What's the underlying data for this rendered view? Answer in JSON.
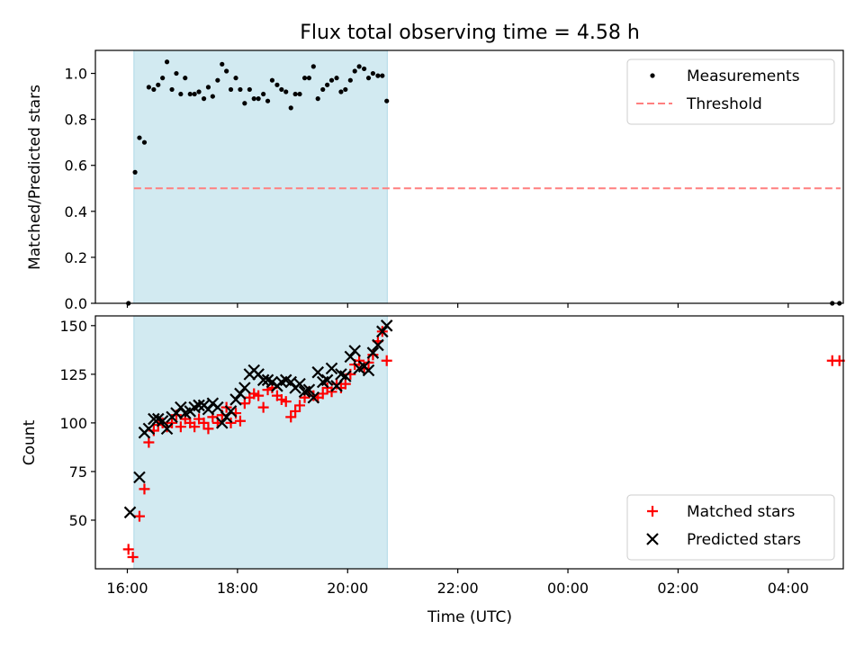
{
  "chart_data": {
    "title": "Flux total observing time = 4.58 h",
    "xlabel": "Time (UTC)",
    "x_unit": "hours since 16:00 UTC",
    "x_ticks": [
      {
        "value": 0,
        "label": "16:00"
      },
      {
        "value": 2,
        "label": "18:00"
      },
      {
        "value": 4,
        "label": "20:00"
      },
      {
        "value": 6,
        "label": "22:00"
      },
      {
        "value": 8,
        "label": "00:00"
      },
      {
        "value": 10,
        "label": "02:00"
      },
      {
        "value": 12,
        "label": "04:00"
      }
    ],
    "xlim": [
      -0.58,
      13.0
    ],
    "shaded_span": [
      0.12,
      4.72
    ],
    "shade_color": "#add8e6",
    "panels": [
      {
        "id": "ratio",
        "type": "scatter",
        "ylabel": "Matched/Predicted stars",
        "ylim": [
          0.0,
          1.1
        ],
        "y_ticks": [
          {
            "value": 0.0,
            "label": "0.0"
          },
          {
            "value": 0.2,
            "label": "0.2"
          },
          {
            "value": 0.4,
            "label": "0.4"
          },
          {
            "value": 0.6,
            "label": "0.6"
          },
          {
            "value": 0.8,
            "label": "0.8"
          },
          {
            "value": 1.0,
            "label": "1.0"
          }
        ],
        "legend": "top-right",
        "threshold": {
          "name": "Threshold",
          "value": 0.5,
          "x_range": [
            0.12,
            12.95
          ],
          "color": "#ff7f7f"
        },
        "series": [
          {
            "name": "Measurements",
            "color": "#000000",
            "marker": "dot",
            "x": [
              0.02,
              0.14,
              0.22,
              0.31,
              0.39,
              0.48,
              0.56,
              0.64,
              0.72,
              0.81,
              0.89,
              0.97,
              1.05,
              1.14,
              1.22,
              1.3,
              1.39,
              1.47,
              1.55,
              1.64,
              1.72,
              1.8,
              1.88,
              1.97,
              2.05,
              2.13,
              2.22,
              2.3,
              2.38,
              2.47,
              2.55,
              2.63,
              2.72,
              2.8,
              2.88,
              2.97,
              3.05,
              3.13,
              3.22,
              3.3,
              3.38,
              3.46,
              3.55,
              3.63,
              3.71,
              3.8,
              3.88,
              3.96,
              4.05,
              4.13,
              4.21,
              4.3,
              4.38,
              4.46,
              4.55,
              4.63,
              4.71,
              12.8,
              12.93
            ],
            "y": [
              0.0,
              0.57,
              0.72,
              0.7,
              0.94,
              0.93,
              0.95,
              0.98,
              1.05,
              0.93,
              1.0,
              0.91,
              0.98,
              0.91,
              0.91,
              0.92,
              0.89,
              0.94,
              0.9,
              0.97,
              1.04,
              1.01,
              0.93,
              0.98,
              0.93,
              0.87,
              0.93,
              0.89,
              0.89,
              0.91,
              0.88,
              0.97,
              0.95,
              0.93,
              0.92,
              0.85,
              0.91,
              0.91,
              0.98,
              0.98,
              1.03,
              0.89,
              0.93,
              0.95,
              0.97,
              0.98,
              0.92,
              0.93,
              0.97,
              1.01,
              1.03,
              1.02,
              0.98,
              1.0,
              0.99,
              0.99,
              0.88,
              0.0,
              0.0
            ]
          }
        ]
      },
      {
        "id": "count",
        "type": "scatter",
        "ylabel": "Count",
        "ylim": [
          25,
          155
        ],
        "y_ticks": [
          {
            "value": 50,
            "label": "50"
          },
          {
            "value": 75,
            "label": "75"
          },
          {
            "value": 100,
            "label": "100"
          },
          {
            "value": 125,
            "label": "125"
          },
          {
            "value": 150,
            "label": "150"
          }
        ],
        "legend": "bottom-right",
        "series": [
          {
            "name": "Matched stars",
            "color": "#ff0000",
            "marker": "plus",
            "x": [
              0.02,
              0.1,
              0.22,
              0.31,
              0.39,
              0.48,
              0.56,
              0.64,
              0.72,
              0.81,
              0.89,
              0.97,
              1.05,
              1.14,
              1.22,
              1.3,
              1.39,
              1.47,
              1.55,
              1.64,
              1.72,
              1.8,
              1.88,
              1.97,
              2.05,
              2.13,
              2.22,
              2.3,
              2.38,
              2.47,
              2.55,
              2.63,
              2.72,
              2.8,
              2.88,
              2.97,
              3.05,
              3.13,
              3.22,
              3.3,
              3.38,
              3.46,
              3.55,
              3.63,
              3.71,
              3.8,
              3.88,
              3.96,
              4.05,
              4.13,
              4.21,
              4.3,
              4.38,
              4.46,
              4.55,
              4.63,
              4.71,
              12.8,
              12.93
            ],
            "y": [
              35,
              31,
              52,
              66,
              90,
              96,
              99,
              100,
              98,
              100,
              104,
              98,
              102,
              100,
              98,
              102,
              100,
              97,
              103,
              100,
              104,
              108,
              100,
              105,
              101,
              110,
              113,
              115,
              114,
              108,
              117,
              118,
              114,
              112,
              111,
              103,
              106,
              109,
              113,
              116,
              114,
              113,
              115,
              118,
              116,
              120,
              118,
              120,
              125,
              130,
              132,
              128,
              131,
              135,
              142,
              147,
              132,
              132,
              132
            ]
          },
          {
            "name": "Predicted stars",
            "color": "#000000",
            "marker": "x",
            "x": [
              0.05,
              0.22,
              0.31,
              0.39,
              0.48,
              0.56,
              0.64,
              0.72,
              0.81,
              0.89,
              0.97,
              1.05,
              1.14,
              1.22,
              1.3,
              1.39,
              1.47,
              1.55,
              1.64,
              1.72,
              1.8,
              1.88,
              1.97,
              2.05,
              2.13,
              2.22,
              2.3,
              2.38,
              2.47,
              2.55,
              2.63,
              2.72,
              2.8,
              2.88,
              2.97,
              3.05,
              3.13,
              3.22,
              3.3,
              3.38,
              3.46,
              3.55,
              3.63,
              3.71,
              3.8,
              3.88,
              3.96,
              4.05,
              4.13,
              4.21,
              4.3,
              4.38,
              4.46,
              4.55,
              4.63,
              4.71
            ],
            "y": [
              54,
              72,
              95,
              97,
              102,
              102,
              101,
              97,
              103,
              105,
              108,
              105,
              106,
              108,
              109,
              109,
              107,
              110,
              108,
              100,
              103,
              106,
              112,
              115,
              118,
              125,
              127,
              125,
              122,
              122,
              121,
              119,
              121,
              122,
              121,
              118,
              120,
              116,
              117,
              113,
              126,
              121,
              122,
              128,
              119,
              125,
              124,
              134,
              137,
              128,
              129,
              127,
              136,
              140,
              147,
              150
            ]
          }
        ]
      }
    ]
  }
}
